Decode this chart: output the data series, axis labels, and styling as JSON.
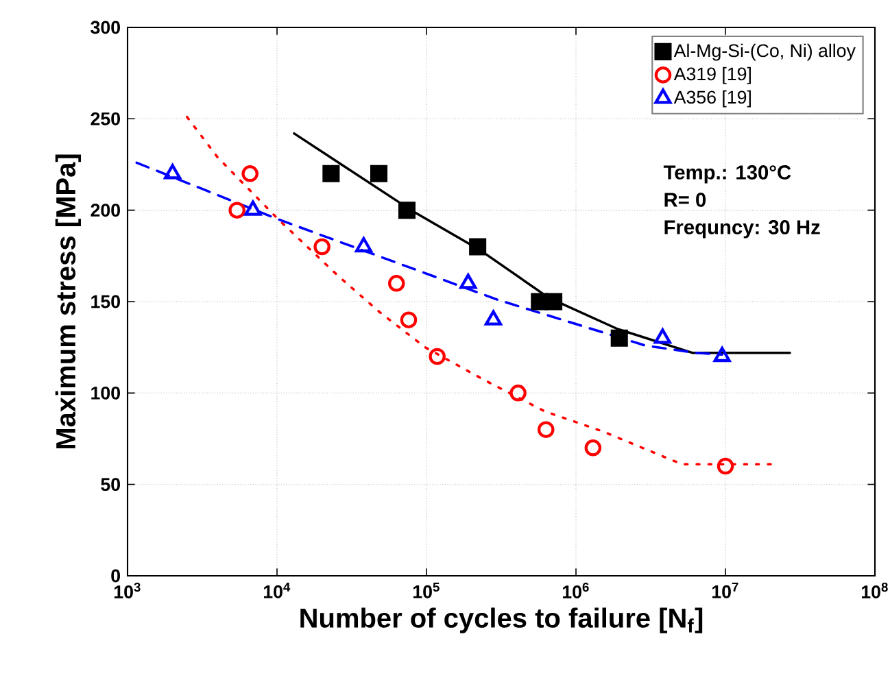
{
  "chart_data": {
    "type": "scatter",
    "xlabel": "Number of cycles to failure [N$_{f}$]",
    "ylabel": "Maximum stress [MPa]",
    "log": "x",
    "grid": true,
    "legend": "top right",
    "xlim": [
      1000,
      100000000
    ],
    "ylim": [
      0,
      300
    ],
    "xticks": [
      {
        "value": 1000,
        "label": "10$^{3}$"
      },
      {
        "value": 10000,
        "label": "10$^{4}$"
      },
      {
        "value": 100000,
        "label": "10$^{5}$"
      },
      {
        "value": 1000000,
        "label": "10$^{6}$"
      },
      {
        "value": 10000000,
        "label": "10$^{7}$"
      },
      {
        "value": 100000000,
        "label": "10$^{8}$"
      }
    ],
    "yticks": [
      0,
      50,
      100,
      150,
      200,
      250,
      300
    ],
    "annotations": [
      "Temp.: 130°C",
      "R= 0",
      "Frequncy: 30 Hz"
    ],
    "series": [
      {
        "name": "Al-Mg-Si-(Co, Ni) alloy",
        "marker": "square",
        "color": "#000000",
        "x": [
          23000,
          48000,
          74000,
          220000,
          570000,
          710000,
          1950000
        ],
        "values": [
          220,
          220,
          200,
          180,
          150,
          150,
          130
        ]
      },
      {
        "name": "A319 [19]",
        "marker": "circle",
        "color": "#ff0000",
        "x": [
          6600,
          5400,
          20000,
          63000,
          76000,
          118000,
          410000,
          630000,
          1300000,
          10000000
        ],
        "values": [
          220,
          200,
          180,
          160,
          140,
          120,
          100,
          80,
          70,
          60
        ]
      },
      {
        "name": "A356 [19]",
        "marker": "triangle",
        "color": "#0000ff",
        "x": [
          2000,
          6900,
          38000,
          190000,
          280000,
          3800000,
          9500000
        ],
        "values": [
          220,
          200,
          180,
          160,
          140,
          130,
          120
        ]
      },
      {
        "type": "line",
        "line_style": "solid",
        "color": "#000000",
        "x": [
          13000,
          79000,
          230000,
          660000,
          1900000,
          6000000,
          27000000
        ],
        "values": [
          242,
          200,
          178,
          152,
          135,
          122,
          122
        ]
      },
      {
        "type": "line",
        "line_style": "dotted",
        "color": "#ff0000",
        "x": [
          2500,
          4000,
          10200,
          25700,
          49000,
          98000,
          245000,
          617000,
          1510000,
          5130000,
          20400000
        ],
        "values": [
          251,
          229,
          195,
          164,
          144,
          125,
          107,
          90,
          79,
          61,
          61
        ]
      },
      {
        "type": "line",
        "line_style": "dashed",
        "color": "#0000ff",
        "x": [
          1150,
          10200,
          300000,
          2900000,
          6300000,
          9500000
        ],
        "values": [
          226,
          195,
          151,
          126,
          122,
          121
        ]
      }
    ]
  }
}
